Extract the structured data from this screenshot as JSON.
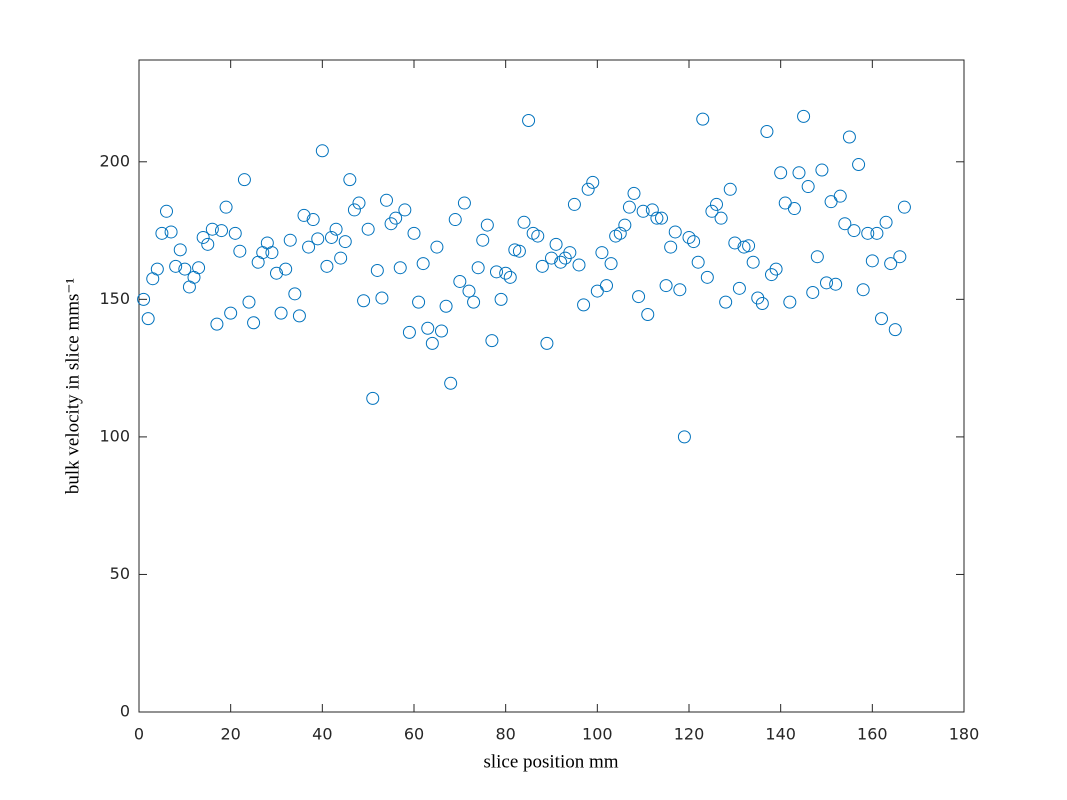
{
  "chart_data": {
    "type": "scatter",
    "x_label": "slice position mm",
    "y_label": "bulk velocity in slice mms⁻¹",
    "series": [
      {
        "color": "#0072bd",
        "x": [
          1,
          2,
          3,
          4,
          5,
          6,
          7,
          8,
          9,
          10,
          11,
          12,
          13,
          14,
          15,
          16,
          17,
          18,
          19,
          20,
          21,
          22,
          23,
          24,
          25,
          26,
          27,
          28,
          29,
          30,
          31,
          32,
          33,
          34,
          35,
          36,
          37,
          38,
          39,
          40,
          41,
          42,
          43,
          44,
          45,
          46,
          47,
          48,
          49,
          50,
          51,
          52,
          53,
          54,
          55,
          56,
          57,
          58,
          59,
          60,
          61,
          62,
          63,
          64,
          65,
          66,
          67,
          68,
          69,
          70,
          71,
          72,
          73,
          74,
          75,
          76,
          77,
          78,
          79,
          80,
          81,
          82,
          83,
          84,
          85,
          86,
          87,
          88,
          89,
          90,
          91,
          92,
          93,
          94,
          95,
          96,
          97,
          98,
          99,
          100,
          101,
          102,
          103,
          104,
          105,
          106,
          107,
          108,
          109,
          110,
          111,
          112,
          113,
          114,
          115,
          116,
          117,
          118,
          119,
          120,
          121,
          122,
          123,
          124,
          125,
          126,
          127,
          128,
          129,
          130,
          131,
          132,
          133,
          134,
          135,
          136,
          137,
          138,
          139,
          140,
          141,
          142,
          143,
          144,
          145,
          146,
          147,
          148,
          149,
          150,
          151,
          152,
          153,
          154,
          155,
          156,
          157,
          158,
          159,
          160,
          161,
          162,
          163,
          164,
          165,
          166,
          167
        ],
        "values": [
          150,
          143,
          157.5,
          161,
          174,
          182,
          174.5,
          162,
          168,
          161,
          154.5,
          158,
          161.5,
          172.5,
          170,
          175.5,
          141,
          175,
          183.5,
          145,
          174,
          167.5,
          193.5,
          149,
          141.5,
          163.5,
          167,
          170.5,
          167,
          159.5,
          145,
          161,
          171.5,
          152,
          144,
          180.5,
          169,
          179,
          172,
          204,
          162,
          172.5,
          175.5,
          165,
          171,
          193.5,
          182.5,
          185,
          149.5,
          175.5,
          114,
          160.5,
          150.5,
          186,
          177.5,
          179.5,
          161.5,
          182.5,
          138,
          174,
          149,
          163,
          139.5,
          134,
          169,
          138.5,
          147.5,
          119.5,
          179,
          156.5,
          185,
          153,
          149,
          161.5,
          171.5,
          177,
          135,
          160,
          150,
          159.5,
          158,
          168,
          167.5,
          178,
          215,
          174,
          173,
          162,
          134,
          165,
          170,
          163.5,
          165,
          167,
          184.5,
          162.5,
          148,
          190,
          192.5,
          153,
          167,
          155,
          163,
          173,
          174,
          177,
          183.5,
          188.5,
          151,
          182,
          144.5,
          182.5,
          179.5,
          179.5,
          155,
          169,
          174.5,
          153.5,
          100,
          172.5,
          171,
          163.5,
          215.5,
          158,
          182,
          184.5,
          179.5,
          149,
          190,
          170.5,
          154,
          169,
          169.5,
          163.5,
          150.5,
          148.5,
          211,
          159,
          161,
          196,
          185,
          149,
          183,
          196,
          216.5,
          191,
          152.5,
          165.5,
          197,
          156,
          185.5,
          155.5,
          187.5,
          177.5,
          209,
          175,
          199,
          153.5,
          174,
          164,
          174,
          143,
          178,
          163,
          139,
          165.5,
          183.5
        ]
      }
    ],
    "xlim": [
      0,
      180
    ],
    "xticks": [
      0,
      20,
      40,
      60,
      80,
      100,
      120,
      140,
      160,
      180
    ],
    "ylim": [
      0,
      237
    ],
    "yticks": [
      0,
      50,
      100,
      150,
      200
    ]
  }
}
